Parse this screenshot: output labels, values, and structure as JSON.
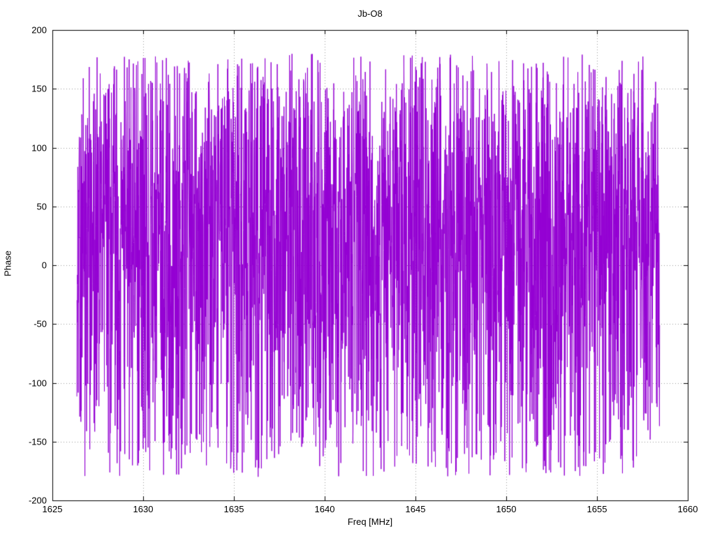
{
  "chart_data": {
    "type": "line",
    "title": "Jb-O8",
    "xlabel": "Freq [MHz]",
    "ylabel": "Phase",
    "xlim": [
      1625,
      1660
    ],
    "ylim": [
      -200,
      200
    ],
    "x_ticks": [
      1625,
      1630,
      1635,
      1640,
      1645,
      1650,
      1655,
      1660
    ],
    "y_ticks": [
      -200,
      -150,
      -100,
      -50,
      0,
      50,
      100,
      150,
      200
    ],
    "grid": true,
    "legend": "none",
    "colors": {
      "line": "#9400d3",
      "border": "#000000",
      "grid": "#9a9a9a",
      "background": "#ffffff",
      "text": "#000000"
    },
    "series": [
      {
        "name": "phase",
        "x_start": 1626.35,
        "x_end": 1658.45,
        "n_points": 3200,
        "noise": {
          "seed": 1337,
          "center": 40,
          "sigma": 82,
          "uniform_fraction": 0.3,
          "wrap_range": [
            -180,
            180
          ]
        }
      }
    ]
  }
}
